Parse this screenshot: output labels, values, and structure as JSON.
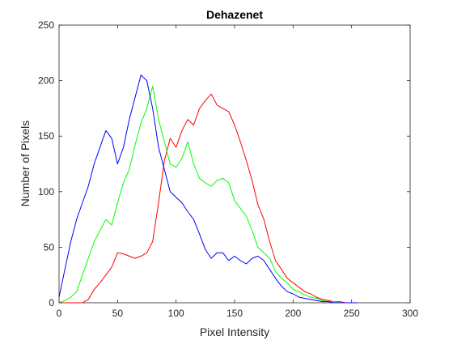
{
  "chart_data": {
    "type": "line",
    "title": "Dehazenet",
    "xlabel": "Pixel Intensity",
    "ylabel": "Number of Pixels",
    "xlim": [
      0,
      300
    ],
    "ylim": [
      0,
      250
    ],
    "xticks": [
      0,
      50,
      100,
      150,
      200,
      250,
      300
    ],
    "yticks": [
      0,
      50,
      100,
      150,
      200,
      250
    ],
    "grid": false,
    "legend": "none",
    "series": [
      {
        "color": "#ff0000",
        "x": [
          0,
          5,
          10,
          15,
          20,
          25,
          30,
          35,
          40,
          45,
          50,
          55,
          60,
          65,
          70,
          75,
          80,
          85,
          90,
          95,
          100,
          105,
          110,
          115,
          120,
          125,
          130,
          135,
          140,
          145,
          150,
          155,
          160,
          165,
          170,
          175,
          180,
          185,
          190,
          195,
          200,
          205,
          210,
          215,
          220,
          225,
          230,
          235,
          240,
          245,
          250,
          255
        ],
        "y": [
          0,
          0,
          0,
          0,
          0,
          3,
          12,
          18,
          25,
          32,
          45,
          44,
          42,
          40,
          42,
          45,
          55,
          90,
          128,
          148,
          140,
          155,
          165,
          160,
          175,
          182,
          188,
          178,
          175,
          172,
          160,
          145,
          128,
          110,
          88,
          75,
          55,
          38,
          30,
          22,
          18,
          14,
          10,
          8,
          5,
          3,
          2,
          1,
          1,
          0,
          0,
          0
        ]
      },
      {
        "color": "#00ff00",
        "x": [
          0,
          5,
          10,
          15,
          20,
          25,
          30,
          35,
          40,
          45,
          50,
          55,
          60,
          65,
          70,
          75,
          80,
          85,
          90,
          95,
          100,
          105,
          110,
          115,
          120,
          125,
          130,
          135,
          140,
          145,
          150,
          155,
          160,
          165,
          170,
          175,
          180,
          185,
          190,
          195,
          200,
          205,
          210,
          215,
          220,
          225,
          230,
          235,
          240,
          245,
          250,
          255
        ],
        "y": [
          0,
          2,
          5,
          10,
          25,
          40,
          55,
          65,
          75,
          70,
          90,
          108,
          120,
          142,
          162,
          175,
          195,
          165,
          145,
          125,
          122,
          130,
          145,
          125,
          112,
          108,
          105,
          110,
          112,
          108,
          92,
          85,
          78,
          65,
          50,
          45,
          40,
          28,
          22,
          18,
          12,
          10,
          7,
          5,
          4,
          2,
          1,
          1,
          0,
          0,
          0,
          0
        ]
      },
      {
        "color": "#0000ff",
        "x": [
          0,
          5,
          10,
          15,
          20,
          25,
          30,
          35,
          40,
          45,
          50,
          55,
          60,
          65,
          70,
          75,
          80,
          85,
          90,
          95,
          100,
          105,
          110,
          115,
          120,
          125,
          130,
          135,
          140,
          145,
          150,
          155,
          160,
          165,
          170,
          175,
          180,
          185,
          190,
          195,
          200,
          205,
          210,
          215,
          220,
          225,
          230,
          235,
          240,
          245,
          250,
          255
        ],
        "y": [
          5,
          30,
          55,
          75,
          90,
          105,
          125,
          140,
          155,
          148,
          125,
          140,
          165,
          185,
          205,
          200,
          175,
          140,
          120,
          100,
          95,
          90,
          82,
          75,
          62,
          48,
          40,
          45,
          45,
          38,
          42,
          38,
          35,
          40,
          42,
          38,
          30,
          22,
          15,
          10,
          8,
          5,
          4,
          3,
          2,
          1,
          1,
          0,
          0,
          0,
          0,
          0
        ]
      }
    ]
  }
}
